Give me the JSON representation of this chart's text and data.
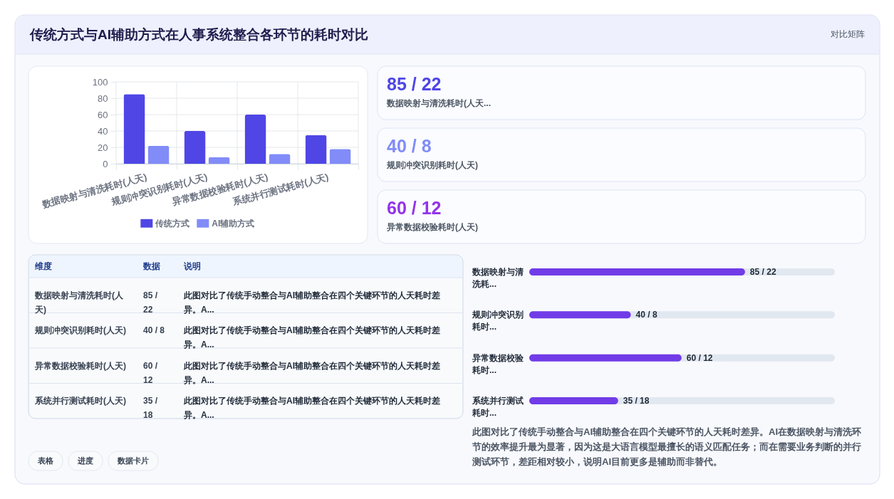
{
  "chart_data": [
    {
      "type": "bar",
      "title": "传统方式与AI辅助方式在人事系统整合各环节的耗时对比",
      "annotations": [
        "对比矩阵"
      ],
      "categories": [
        "数据映射与清洗耗时(人天)",
        "规则冲突识别耗时(人天)",
        "异常数据校验耗时(人天)",
        "系统并行测试耗时(人天)"
      ],
      "series": [
        {
          "name": "传统方式",
          "color": "#4f46e5",
          "values": [
            85,
            40,
            60,
            35
          ]
        },
        {
          "name": "AI辅助方式",
          "color": "#818cf8",
          "values": [
            22,
            8,
            12,
            18
          ]
        }
      ],
      "ylim": [
        0,
        100
      ],
      "yticks": [
        0,
        20,
        40,
        60,
        80,
        100
      ],
      "grid": true,
      "legend": "bottom"
    },
    {
      "type": "other",
      "categories": [
        "数据映射与清洗耗时(人天...",
        "规则冲突识别耗时(人天)",
        "异常数据校验耗时(人天)"
      ],
      "value_labels": [
        "85 / 22",
        "40 / 8",
        "60 / 12"
      ]
    },
    {
      "type": "other",
      "categories": [
        "维度",
        "数据",
        "说明"
      ],
      "cell_labels": [
        [
          "数据映射与清洗耗时(人天)",
          "85 / 22",
          "此图对比了传统手动整合与AI辅助整合在四个关键环节的人天耗时差异。A..."
        ],
        [
          "规则冲突识别耗时(人天)",
          "40 / 8",
          "此图对比了传统手动整合与AI辅助整合在四个关键环节的人天耗时差异。A..."
        ],
        [
          "异常数据校验耗时(人天)",
          "60 / 12",
          "此图对比了传统手动整合与AI辅助整合在四个关键环节的人天耗时差异。A..."
        ],
        [
          "系统并行测试耗时(人天)",
          "35 / 18",
          "此图对比了传统手动整合与AI辅助整合在四个关键环节的人天耗时差异。A..."
        ]
      ]
    },
    {
      "type": "bar",
      "orientation": "horizontal",
      "categories": [
        "数据映射与清洗耗...",
        "规则冲突识别耗时...",
        "异常数据校验耗时...",
        "系统并行测试耗时..."
      ],
      "values": [
        85,
        40,
        60,
        35
      ],
      "value_labels": [
        "85 / 22",
        "40 / 8",
        "60 / 12",
        "35 / 18"
      ],
      "color": "#713ce7",
      "tick_labels": "y",
      "annotations": [
        "此图对比了传统手动整合与AI辅助整合在四个关键环节的人天耗时差异。AI在数据映射与清洗环节的效率提升最为显著，因为这是大语言模型最擅长的语义匹配任务；而在需要业务判断的并行测试环节，差距相对较小，说明AI目前更多是辅助而非替代。"
      ]
    },
    {
      "type": "other",
      "annotations": [
        "表格",
        "进度",
        "数据卡片"
      ]
    }
  ]
}
